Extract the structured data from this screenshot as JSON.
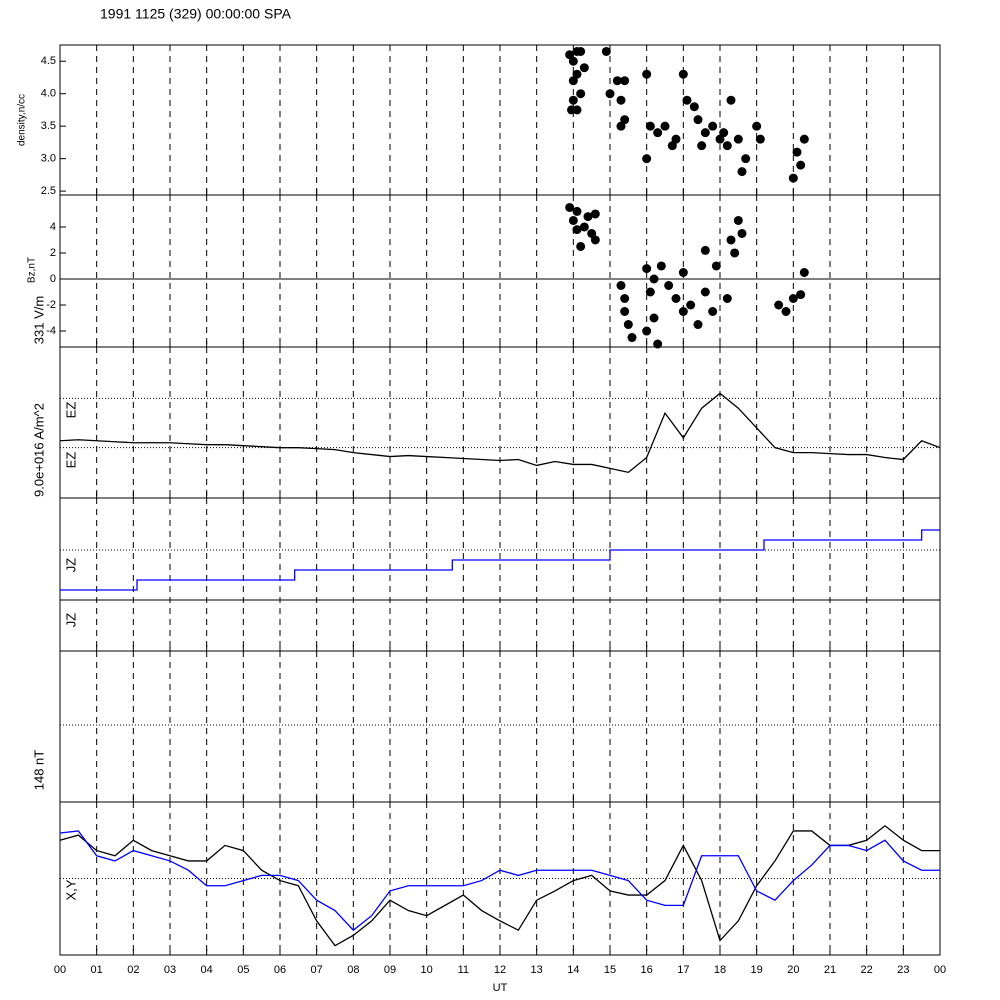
{
  "title": "1991 1125 (329) 00:00:00 SPA",
  "xlabel": "UT",
  "xlim": [
    0,
    24
  ],
  "xticks": [
    {
      "value": 0,
      "label": "00"
    },
    {
      "value": 1,
      "label": "01"
    },
    {
      "value": 2,
      "label": "02"
    },
    {
      "value": 3,
      "label": "03"
    },
    {
      "value": 4,
      "label": "04"
    },
    {
      "value": 5,
      "label": "05"
    },
    {
      "value": 6,
      "label": "06"
    },
    {
      "value": 7,
      "label": "07"
    },
    {
      "value": 8,
      "label": "08"
    },
    {
      "value": 9,
      "label": "09"
    },
    {
      "value": 10,
      "label": "10"
    },
    {
      "value": 11,
      "label": "11"
    },
    {
      "value": 12,
      "label": "12"
    },
    {
      "value": 13,
      "label": "13"
    },
    {
      "value": 14,
      "label": "14"
    },
    {
      "value": 15,
      "label": "15"
    },
    {
      "value": 16,
      "label": "16"
    },
    {
      "value": 17,
      "label": "17"
    },
    {
      "value": 18,
      "label": "18"
    },
    {
      "value": 19,
      "label": "19"
    },
    {
      "value": 20,
      "label": "20"
    },
    {
      "value": 21,
      "label": "21"
    },
    {
      "value": 22,
      "label": "22"
    },
    {
      "value": 23,
      "label": "23"
    },
    {
      "value": 24,
      "label": "00"
    }
  ],
  "chart_data": [
    {
      "type": "scatter",
      "ylabel": "density,n/cc",
      "ylim": [
        2.44,
        4.75
      ],
      "color": "#000000",
      "yticks": [
        2.5,
        {
          "value": 3,
          "label": "3.0"
        },
        3.5,
        {
          "value": 4,
          "label": "4.0"
        },
        4.5
      ],
      "x": [
        13.9,
        14.0,
        14.0,
        14.1,
        14.1,
        14.2,
        13.95,
        14.1,
        14.2,
        14.3,
        14.0,
        14.9,
        15.2,
        15.3,
        15.4,
        15.4,
        15.0,
        15.3,
        16.0,
        16.1,
        16.0,
        16.3,
        16.5,
        16.8,
        17.0,
        17.1,
        17.3,
        17.4,
        17.6,
        17.8,
        18.0,
        18.2,
        18.5,
        18.7,
        18.6,
        19.0,
        19.1,
        18.3,
        18.1,
        20.0,
        20.1,
        20.3,
        20.2,
        16.7,
        17.5
      ],
      "values": [
        4.6,
        4.5,
        4.2,
        4.65,
        4.3,
        4.0,
        3.75,
        3.75,
        4.65,
        4.4,
        3.9,
        4.65,
        4.2,
        3.9,
        3.6,
        4.2,
        4.0,
        3.5,
        4.3,
        3.5,
        3.0,
        3.4,
        3.5,
        3.3,
        4.3,
        3.9,
        3.8,
        3.6,
        3.4,
        3.5,
        3.3,
        3.2,
        3.3,
        3.0,
        2.8,
        3.5,
        3.3,
        3.9,
        3.4,
        2.7,
        3.1,
        3.3,
        2.9,
        3.2,
        3.2
      ]
    },
    {
      "type": "scatter",
      "ylabel": "Bz,nT",
      "ylim": [
        -5.23,
        6.46
      ],
      "color": "#000000",
      "zero_line": true,
      "yticks": [
        -4,
        -2,
        0,
        2,
        4
      ],
      "x": [
        13.9,
        14.0,
        14.1,
        14.3,
        14.5,
        14.6,
        14.2,
        14.4,
        14.6,
        14.1,
        15.3,
        15.4,
        15.5,
        15.6,
        15.4,
        16.0,
        16.1,
        16.2,
        16.0,
        16.3,
        16.2,
        16.6,
        16.8,
        17.0,
        17.2,
        17.4,
        17.6,
        17.8,
        17.9,
        17.6,
        18.2,
        18.3,
        18.5,
        18.4,
        18.6,
        19.6,
        19.8,
        20.0,
        20.3,
        20.2,
        16.4,
        17.0
      ],
      "values": [
        5.5,
        4.5,
        3.8,
        4.0,
        3.5,
        5.0,
        2.5,
        4.8,
        3.0,
        5.2,
        -0.5,
        -2.5,
        -3.5,
        -4.5,
        -1.5,
        0.8,
        -1,
        -3,
        -4,
        -5,
        0,
        -0.5,
        -1.5,
        -2.5,
        -2,
        -3.5,
        -1,
        -2.5,
        1,
        2.2,
        -1.5,
        3,
        4.5,
        2,
        3.5,
        -2,
        -2.5,
        -1.5,
        0.5,
        -1.2,
        1,
        0.5
      ]
    },
    {
      "type": "line",
      "ylabels": [
        "331 V/m",
        "EZ",
        "EZ"
      ],
      "ylim": [
        -1.02,
        2.04
      ],
      "yref": [
        0,
        1
      ],
      "color": "#000000",
      "x": [
        0,
        0.5,
        1,
        1.5,
        2,
        2.5,
        3,
        3.5,
        4,
        4.5,
        5,
        5.5,
        6,
        6.5,
        7,
        7.5,
        8,
        8.5,
        9,
        9.5,
        10,
        10.5,
        11,
        11.5,
        12,
        12.5,
        13,
        13.5,
        14,
        14.5,
        15,
        15.5,
        16,
        16.5,
        17,
        17.5,
        18,
        18.5,
        19,
        19.5,
        20,
        20.5,
        21,
        21.5,
        22,
        22.5,
        23,
        23.5,
        24
      ],
      "values": [
        0.14,
        0.16,
        0.14,
        0.12,
        0.1,
        0.1,
        0.1,
        0.08,
        0.06,
        0.06,
        0.04,
        0.02,
        0,
        0,
        -0.02,
        -0.04,
        -0.1,
        -0.14,
        -0.18,
        -0.16,
        -0.18,
        -0.2,
        -0.22,
        -0.24,
        -0.26,
        -0.24,
        -0.36,
        -0.28,
        -0.34,
        -0.34,
        -0.42,
        -0.5,
        -0.2,
        0.7,
        0.2,
        0.8,
        1.1,
        0.8,
        0.4,
        0,
        -0.1,
        -0.1,
        -0.12,
        -0.14,
        -0.14,
        -0.2,
        -0.24,
        0.14,
        0
      ]
    },
    {
      "type": "step",
      "ylabels": [
        "9.0e+016 A/m^2",
        "JZ",
        "JZ"
      ],
      "ylim": [
        -10.1,
        5.2
      ],
      "yref": [
        0
      ],
      "color": "#0000ff",
      "x": [
        0,
        2.1,
        6.4,
        10.7,
        15,
        19.2,
        23.5,
        24
      ],
      "values": [
        -4,
        -3,
        -2,
        -1,
        0,
        1,
        2,
        2
      ]
    },
    {
      "type": "line",
      "ylabels": [
        "148 nT",
        "X,Y"
      ],
      "ylim": [
        -74,
        74
      ],
      "yref": [
        0
      ],
      "x": [
        0,
        0.5,
        1,
        1.5,
        2,
        2.5,
        3,
        3.5,
        4,
        4.5,
        5,
        5.5,
        6,
        6.5,
        7,
        7.5,
        8,
        8.5,
        9,
        9.5,
        10,
        10.5,
        11,
        11.5,
        12,
        12.5,
        13,
        13.5,
        14,
        14.5,
        15,
        15.5,
        16,
        16.5,
        17,
        17.5,
        18,
        18.5,
        19,
        19.5,
        20,
        20.5,
        21,
        21.5,
        22,
        22.5,
        23,
        23.5,
        24
      ],
      "series": [
        {
          "color": "#000000",
          "values": [
            37,
            42,
            27,
            22,
            37,
            27,
            22,
            17,
            17,
            32,
            27,
            8,
            -2,
            -7,
            -41,
            -65,
            -55,
            -41,
            -21,
            -31,
            -36,
            -26,
            -16,
            -31,
            -41,
            -50,
            -21,
            -12,
            -2,
            3,
            -12,
            -16,
            -16,
            -2,
            32,
            -2,
            -60,
            -41,
            -7,
            17,
            46,
            46,
            32,
            32,
            37,
            51,
            37,
            27,
            27
          ]
        },
        {
          "color": "#0000ff",
          "values": [
            44,
            46,
            22,
            17,
            27,
            22,
            17,
            8,
            -7,
            -7,
            -2,
            3,
            3,
            -2,
            -21,
            -31,
            -50,
            -36,
            -12,
            -7,
            -7,
            -7,
            -7,
            -2,
            8,
            3,
            8,
            8,
            8,
            8,
            3,
            -2,
            -21,
            -26,
            -26,
            22,
            22,
            22,
            -12,
            -21,
            -2,
            13,
            32,
            32,
            27,
            37,
            17,
            8,
            8
          ]
        }
      ]
    }
  ]
}
